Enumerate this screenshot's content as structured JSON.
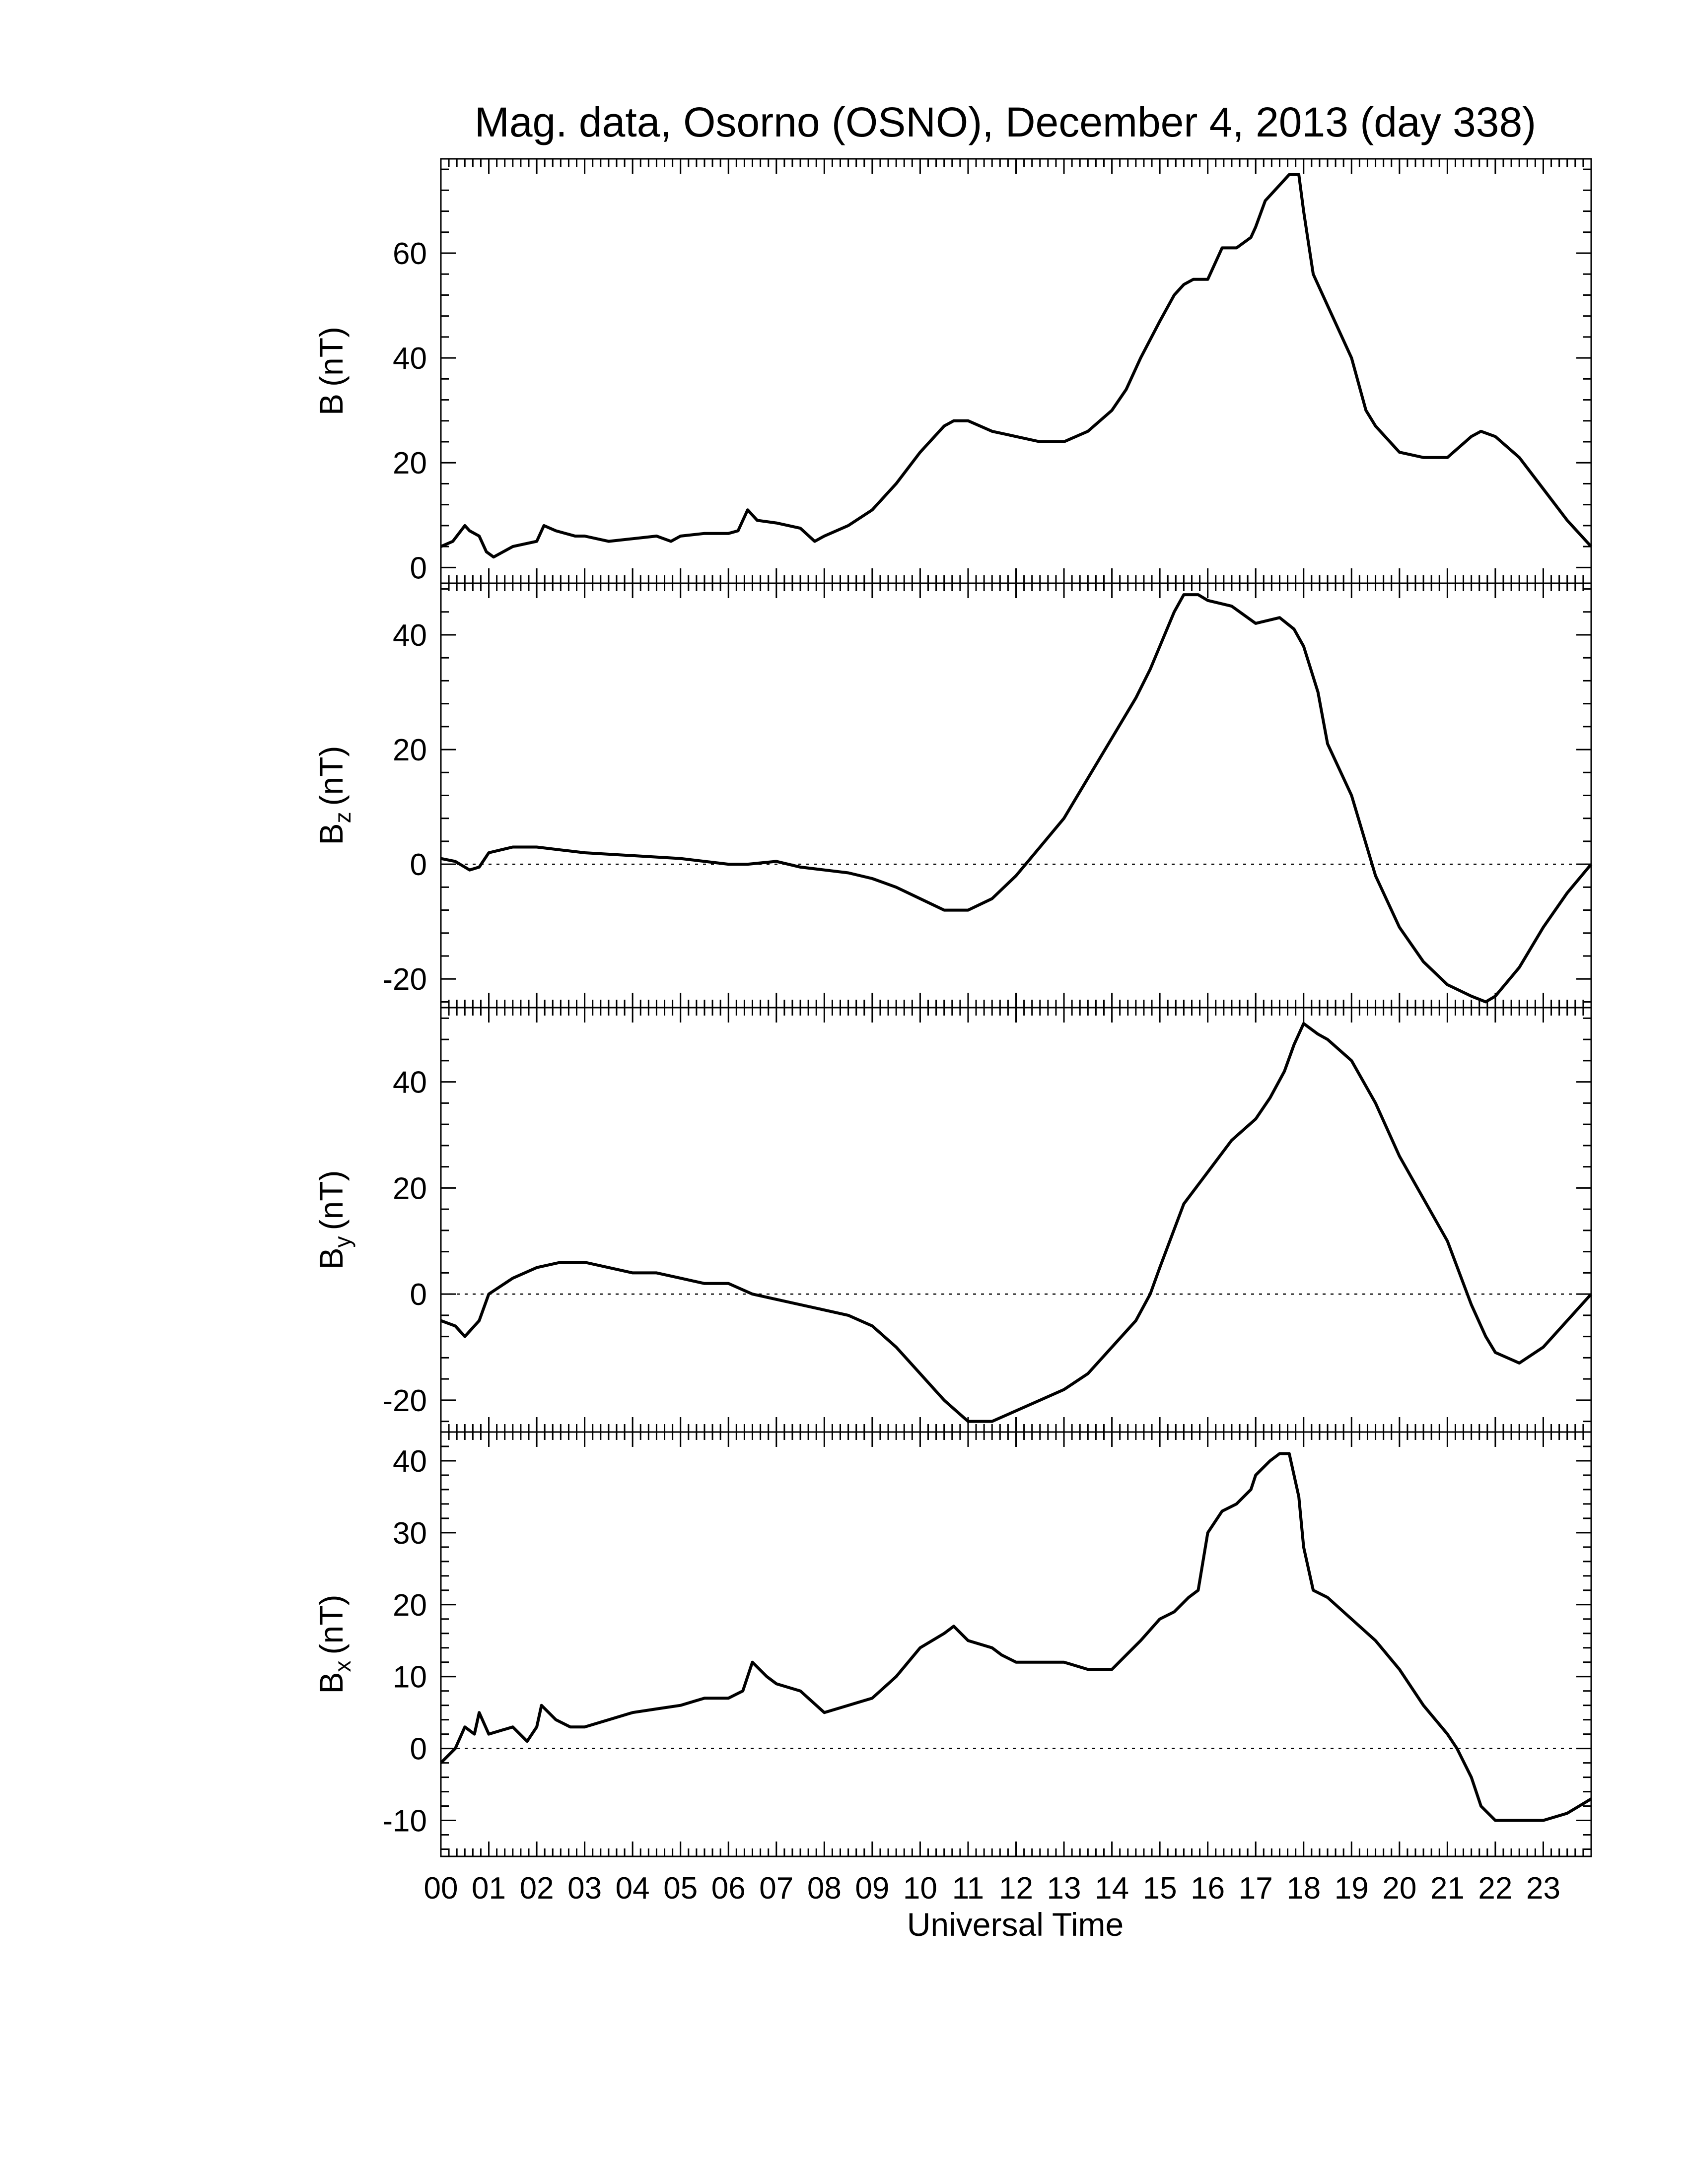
{
  "title": "Mag. data, Osorno (OSNO), December 4, 2013 (day 338)",
  "x_axis": {
    "title": "Universal Time",
    "tick_labels": [
      "00",
      "01",
      "02",
      "03",
      "04",
      "05",
      "06",
      "07",
      "08",
      "09",
      "10",
      "11",
      "12",
      "13",
      "14",
      "15",
      "16",
      "17",
      "18",
      "19",
      "20",
      "21",
      "22",
      "23"
    ]
  },
  "panels": [
    {
      "ylabel_main": "B",
      "ylabel_sub": "",
      "ylabel_unit": "(nT)",
      "tick_labels": [
        "0",
        "20",
        "40",
        "60"
      ],
      "zero_line": false
    },
    {
      "ylabel_main": "B",
      "ylabel_sub": "z",
      "ylabel_unit": "(nT)",
      "tick_labels": [
        "-20",
        "0",
        "20",
        "40"
      ],
      "zero_line": true
    },
    {
      "ylabel_main": "B",
      "ylabel_sub": "y",
      "ylabel_unit": "(nT)",
      "tick_labels": [
        "-20",
        "0",
        "20",
        "40"
      ],
      "zero_line": true
    },
    {
      "ylabel_main": "B",
      "ylabel_sub": "x",
      "ylabel_unit": "(nT)",
      "tick_labels": [
        "-10",
        "0",
        "10",
        "20",
        "30",
        "40"
      ],
      "zero_line": true
    }
  ],
  "chart_data": [
    {
      "type": "line",
      "title": "Mag. data, Osorno (OSNO), December 4, 2013 (day 338)",
      "xlabel": "Universal Time",
      "ylabel": "B (nT)",
      "xlim": [
        0,
        24
      ],
      "ylim": [
        -3,
        78
      ],
      "yticks": [
        0,
        20,
        40,
        60
      ],
      "zero_line": false,
      "x": [
        0,
        0.25,
        0.5,
        0.6,
        0.8,
        0.95,
        1.1,
        1.5,
        2.0,
        2.15,
        2.4,
        2.8,
        3.0,
        3.5,
        4.0,
        4.5,
        4.8,
        5.0,
        5.5,
        6.0,
        6.2,
        6.4,
        6.6,
        7.0,
        7.5,
        7.8,
        8.0,
        8.5,
        9.0,
        9.5,
        10.0,
        10.5,
        10.7,
        11.0,
        11.5,
        12.0,
        12.5,
        13.0,
        13.5,
        14.0,
        14.3,
        14.6,
        15.0,
        15.3,
        15.5,
        15.7,
        16.0,
        16.3,
        16.6,
        16.9,
        17.0,
        17.2,
        17.5,
        17.7,
        17.9,
        18.0,
        18.1,
        18.2,
        18.5,
        19.0,
        19.3,
        19.5,
        19.8,
        20.0,
        20.5,
        21.0,
        21.5,
        21.7,
        22.0,
        22.5,
        23.0,
        23.5,
        24.0
      ],
      "series": [
        {
          "values": [
            4,
            5,
            8,
            7,
            6,
            3,
            2,
            4,
            5,
            8,
            7,
            6,
            6,
            5,
            5.5,
            6,
            5,
            6,
            6.5,
            6.5,
            7,
            11,
            9,
            8.5,
            7.5,
            5,
            6,
            8,
            11,
            16,
            22,
            27,
            28,
            28,
            26,
            25,
            24,
            24,
            26,
            30,
            34,
            40,
            47,
            52,
            54,
            55,
            55,
            61,
            61,
            63,
            65,
            70,
            73,
            75,
            75,
            68,
            62,
            56,
            50,
            40,
            30,
            27,
            24,
            22,
            21,
            21,
            25,
            26,
            25,
            21,
            15,
            9,
            4
          ]
        }
      ]
    },
    {
      "type": "line",
      "xlabel": "Universal Time",
      "ylabel": "Bz (nT)",
      "xlim": [
        0,
        24
      ],
      "ylim": [
        -25,
        49
      ],
      "yticks": [
        -20,
        0,
        20,
        40
      ],
      "zero_line": true,
      "x": [
        0,
        0.3,
        0.6,
        0.8,
        1.0,
        1.5,
        2.0,
        2.5,
        3.0,
        4.0,
        5.0,
        6.0,
        6.4,
        7.0,
        7.5,
        8.0,
        8.5,
        9.0,
        9.5,
        10.0,
        10.5,
        11.0,
        11.5,
        12.0,
        12.5,
        13.0,
        13.5,
        14.0,
        14.5,
        14.8,
        15.0,
        15.3,
        15.5,
        15.8,
        16.0,
        16.5,
        17.0,
        17.5,
        17.8,
        18.0,
        18.3,
        18.5,
        19.0,
        19.5,
        20.0,
        20.5,
        21.0,
        21.5,
        21.8,
        22.0,
        22.5,
        23.0,
        23.5,
        24.0
      ],
      "series": [
        {
          "values": [
            1,
            0.5,
            -1,
            -0.5,
            2,
            3,
            3,
            2.5,
            2,
            1.5,
            1,
            0,
            0,
            0.5,
            -0.5,
            -1,
            -1.5,
            -2.5,
            -4,
            -6,
            -8,
            -8,
            -6,
            -2,
            3,
            8,
            15,
            22,
            29,
            34,
            38,
            44,
            47,
            47,
            46,
            45,
            42,
            43,
            41,
            38,
            30,
            21,
            12,
            -2,
            -11,
            -17,
            -21,
            -23,
            -24,
            -23,
            -18,
            -11,
            -5,
            0
          ]
        }
      ]
    },
    {
      "type": "line",
      "xlabel": "Universal Time",
      "ylabel": "By (nT)",
      "xlim": [
        0,
        24
      ],
      "ylim": [
        -26,
        54
      ],
      "yticks": [
        -20,
        0,
        20,
        40
      ],
      "zero_line": true,
      "x": [
        0,
        0.3,
        0.5,
        0.8,
        1.0,
        1.5,
        2.0,
        2.5,
        3.0,
        3.5,
        4.0,
        4.5,
        5.0,
        5.5,
        6.0,
        6.5,
        7.0,
        7.5,
        8.0,
        8.5,
        9.0,
        9.5,
        10.0,
        10.5,
        11.0,
        11.5,
        12.0,
        12.5,
        13.0,
        13.5,
        14.0,
        14.5,
        14.8,
        15.0,
        15.5,
        16.0,
        16.5,
        17.0,
        17.3,
        17.6,
        17.8,
        18.0,
        18.3,
        18.5,
        19.0,
        19.5,
        20.0,
        20.5,
        21.0,
        21.5,
        21.8,
        22.0,
        22.5,
        23.0,
        23.5,
        24.0
      ],
      "series": [
        {
          "values": [
            -5,
            -6,
            -8,
            -5,
            0,
            3,
            5,
            6,
            6,
            5,
            4,
            4,
            3,
            2,
            2,
            0,
            -1,
            -2,
            -3,
            -4,
            -6,
            -10,
            -15,
            -20,
            -24,
            -24,
            -22,
            -20,
            -18,
            -15,
            -10,
            -5,
            0,
            5,
            17,
            23,
            29,
            33,
            37,
            42,
            47,
            51,
            49,
            48,
            44,
            36,
            26,
            18,
            10,
            -2,
            -8,
            -11,
            -13,
            -10,
            -5,
            0
          ]
        }
      ]
    },
    {
      "type": "line",
      "xlabel": "Universal Time",
      "ylabel": "Bx (nT)",
      "xlim": [
        0,
        24
      ],
      "ylim": [
        -15,
        44
      ],
      "yticks": [
        -10,
        0,
        10,
        20,
        30,
        40
      ],
      "zero_line": true,
      "x": [
        0,
        0.3,
        0.5,
        0.7,
        0.8,
        1.0,
        1.5,
        1.8,
        2.0,
        2.1,
        2.4,
        2.7,
        3.0,
        3.5,
        4.0,
        4.5,
        5.0,
        5.5,
        6.0,
        6.3,
        6.5,
        6.8,
        7.0,
        7.5,
        8.0,
        8.5,
        9.0,
        9.5,
        10.0,
        10.5,
        10.7,
        11.0,
        11.5,
        11.7,
        12.0,
        12.5,
        13.0,
        13.5,
        14.0,
        14.3,
        14.6,
        15.0,
        15.3,
        15.6,
        15.8,
        16.0,
        16.3,
        16.6,
        16.9,
        17.0,
        17.3,
        17.5,
        17.7,
        17.9,
        18.0,
        18.2,
        18.5,
        19.0,
        19.5,
        20.0,
        20.5,
        21.0,
        21.2,
        21.5,
        21.7,
        22.0,
        22.5,
        23.0,
        23.5,
        24.0
      ],
      "series": [
        {
          "values": [
            -2,
            0,
            3,
            2,
            5,
            2,
            3,
            1,
            3,
            6,
            4,
            3,
            3,
            4,
            5,
            5.5,
            6,
            7,
            7,
            8,
            12,
            10,
            9,
            8,
            5,
            6,
            7,
            10,
            14,
            16,
            17,
            15,
            14,
            13,
            12,
            12,
            12,
            11,
            11,
            13,
            15,
            18,
            19,
            21,
            22,
            30,
            33,
            34,
            36,
            38,
            40,
            41,
            41,
            35,
            28,
            22,
            21,
            18,
            15,
            11,
            6,
            2,
            0,
            -4,
            -8,
            -10,
            -10,
            -10,
            -9,
            -7
          ]
        }
      ]
    }
  ]
}
